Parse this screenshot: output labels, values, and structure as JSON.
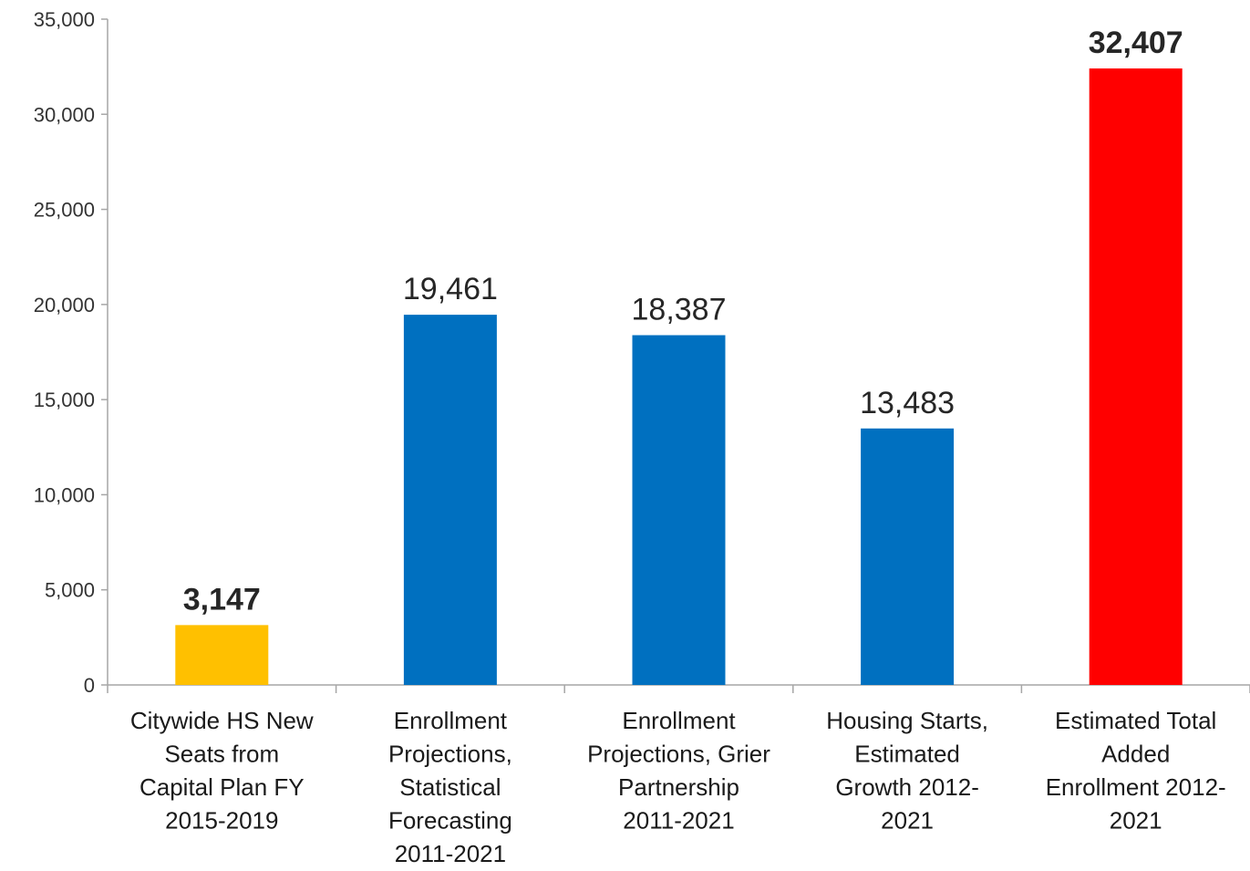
{
  "chart_data": {
    "type": "bar",
    "title": "",
    "xlabel": "",
    "ylabel": "",
    "ylim": [
      0,
      35000
    ],
    "yticks": [
      0,
      5000,
      10000,
      15000,
      20000,
      25000,
      30000,
      35000
    ],
    "ytick_labels": [
      "0",
      "5,000",
      "10,000",
      "15,000",
      "20,000",
      "25,000",
      "30,000",
      "35,000"
    ],
    "grid": false,
    "legend": "none",
    "categories": [
      [
        "Citywide HS New",
        "Seats from",
        "Capital Plan FY",
        "2015-2019"
      ],
      [
        "Enrollment",
        "Projections,",
        "Statistical",
        "Forecasting",
        "2011-2021"
      ],
      [
        "Enrollment",
        "Projections, Grier",
        "Partnership",
        "2011-2021"
      ],
      [
        "Housing Starts,",
        "Estimated",
        "Growth 2012-",
        "2021"
      ],
      [
        "Estimated Total",
        "Added",
        "Enrollment 2012-",
        "2021"
      ]
    ],
    "values": [
      3147,
      19461,
      18387,
      13483,
      32407
    ],
    "value_labels": [
      "3,147",
      "19,461",
      "18,387",
      "13,483",
      "32,407"
    ],
    "bold_labels": [
      true,
      false,
      false,
      false,
      true
    ],
    "colors": [
      "#FFC000",
      "#0070C0",
      "#0070C0",
      "#0070C0",
      "#FF0000"
    ],
    "axis_color": "#A6A6A6"
  }
}
